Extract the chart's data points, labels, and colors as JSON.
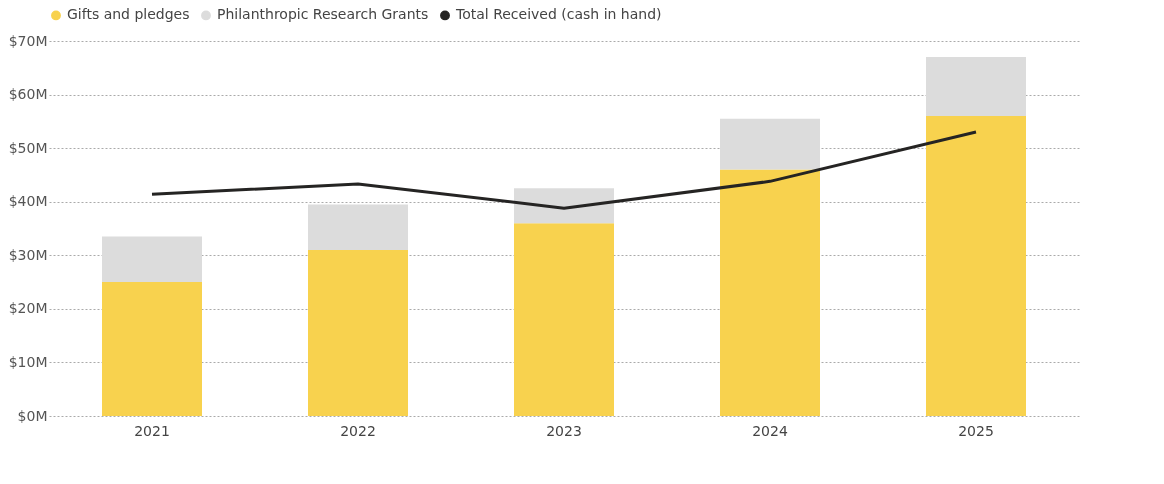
{
  "chart_data": {
    "type": "bar",
    "stacked": true,
    "categories": [
      "2021",
      "2022",
      "2023",
      "2024",
      "2025"
    ],
    "series": [
      {
        "name": "Gifts and pledges",
        "color": "#f8d24e",
        "values": [
          25,
          31,
          36,
          46,
          56
        ]
      },
      {
        "name": "Philanthropic Research Grants",
        "color": "#dcdcdc",
        "values": [
          8.5,
          8.5,
          6.5,
          9.5,
          11
        ]
      },
      {
        "name": "Total Received (cash in hand)",
        "color": "#252423",
        "type": "line",
        "values": [
          41.4,
          43.3,
          38.8,
          43.8,
          53.0
        ]
      }
    ],
    "ylim": [
      0,
      70
    ],
    "yticks": [
      {
        "value": 0,
        "label": "$0M"
      },
      {
        "value": 10,
        "label": "$10M"
      },
      {
        "value": 20,
        "label": "$20M"
      },
      {
        "value": 30,
        "label": "$30M"
      },
      {
        "value": 40,
        "label": "$40M"
      },
      {
        "value": 50,
        "label": "$50M"
      },
      {
        "value": 60,
        "label": "$60M"
      },
      {
        "value": 70,
        "label": "$70M"
      }
    ],
    "grid": "y",
    "legend": "top left",
    "marker": "none",
    "line_style": "solid"
  }
}
